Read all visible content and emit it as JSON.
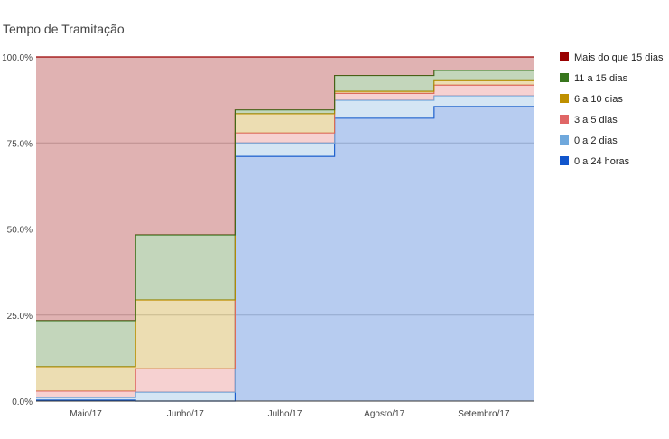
{
  "chart_data": {
    "type": "area",
    "stacked": "percent",
    "stepped": true,
    "title": "Tempo de Tramitação",
    "xlabel": "",
    "ylabel": "",
    "ylim": [
      0,
      100
    ],
    "yticks": [
      "0.0%",
      "25.0%",
      "50.0%",
      "75.0%",
      "100.0%"
    ],
    "ytick_values": [
      0,
      25,
      50,
      75,
      100
    ],
    "grid": true,
    "legend_position": "right",
    "categories": [
      "Maio/17",
      "Junho/17",
      "Julho/17",
      "Agosto/17",
      "Setembro/17"
    ],
    "series": [
      {
        "name": "0 a 24 horas",
        "color": "#1155cc",
        "values": [
          0.3,
          0.0,
          71.1,
          82.2,
          85.6
        ]
      },
      {
        "name": "0 a 2 dias",
        "color": "#6fa8dc",
        "values": [
          0.7,
          2.6,
          3.9,
          5.2,
          3.1
        ]
      },
      {
        "name": "3 a 5 dias",
        "color": "#e06666",
        "values": [
          1.9,
          6.8,
          2.9,
          2.0,
          3.1
        ]
      },
      {
        "name": "6 a 10 dias",
        "color": "#bf9000",
        "values": [
          7.1,
          20.0,
          5.6,
          0.6,
          1.3
        ]
      },
      {
        "name": "11 a 15 dias",
        "color": "#38761d",
        "values": [
          13.4,
          18.9,
          1.1,
          4.6,
          3.0
        ]
      },
      {
        "name": "Mais do que 15 dias",
        "color": "#990000",
        "values": [
          76.6,
          51.7,
          15.4,
          5.4,
          3.9
        ]
      }
    ]
  }
}
